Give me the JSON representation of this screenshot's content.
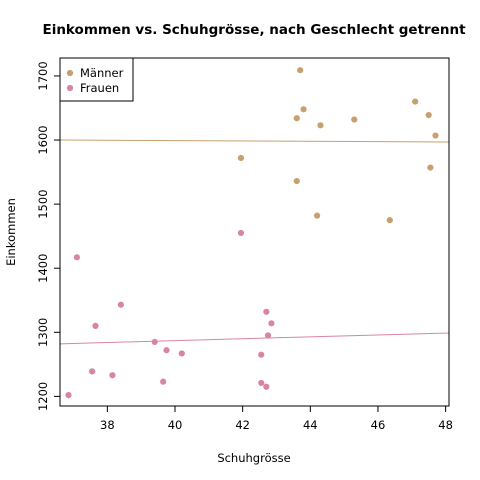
{
  "chart_data": {
    "type": "scatter",
    "title": "Einkommen vs. Schuhgrösse, nach Geschlecht getrennt",
    "xlabel": "Schuhgrösse",
    "ylabel": "Einkommen",
    "xlim": [
      36.6,
      48.1
    ],
    "ylim": [
      1185,
      1728
    ],
    "xticks": [
      38,
      40,
      42,
      44,
      46,
      48
    ],
    "yticks": [
      1200,
      1300,
      1400,
      1500,
      1600,
      1700
    ],
    "grid": false,
    "legend_position": "top-left",
    "series": [
      {
        "name": "Männer",
        "color": "#c8a06e",
        "points": [
          {
            "x": 43.7,
            "y": 1709
          },
          {
            "x": 43.8,
            "y": 1648
          },
          {
            "x": 43.6,
            "y": 1634
          },
          {
            "x": 44.3,
            "y": 1623
          },
          {
            "x": 45.3,
            "y": 1632
          },
          {
            "x": 47.1,
            "y": 1660
          },
          {
            "x": 47.5,
            "y": 1639
          },
          {
            "x": 47.7,
            "y": 1607
          },
          {
            "x": 41.95,
            "y": 1572
          },
          {
            "x": 47.55,
            "y": 1557
          },
          {
            "x": 43.6,
            "y": 1536
          },
          {
            "x": 44.2,
            "y": 1482
          },
          {
            "x": 46.35,
            "y": 1475
          }
        ],
        "fit": {
          "x": [
            36.6,
            48.1
          ],
          "y": [
            1600,
            1597
          ]
        }
      },
      {
        "name": "Frauen",
        "color": "#d8869d",
        "points": [
          {
            "x": 37.1,
            "y": 1417
          },
          {
            "x": 41.95,
            "y": 1455
          },
          {
            "x": 38.4,
            "y": 1343
          },
          {
            "x": 37.65,
            "y": 1310
          },
          {
            "x": 42.7,
            "y": 1332
          },
          {
            "x": 42.85,
            "y": 1314
          },
          {
            "x": 42.75,
            "y": 1295
          },
          {
            "x": 39.4,
            "y": 1285
          },
          {
            "x": 39.75,
            "y": 1272
          },
          {
            "x": 40.2,
            "y": 1267
          },
          {
            "x": 42.55,
            "y": 1265
          },
          {
            "x": 37.55,
            "y": 1239
          },
          {
            "x": 38.15,
            "y": 1233
          },
          {
            "x": 39.65,
            "y": 1223
          },
          {
            "x": 42.55,
            "y": 1221
          },
          {
            "x": 42.7,
            "y": 1215
          },
          {
            "x": 36.85,
            "y": 1202
          }
        ],
        "fit": {
          "x": [
            36.6,
            48.1
          ],
          "y": [
            1282,
            1299
          ]
        }
      }
    ]
  }
}
